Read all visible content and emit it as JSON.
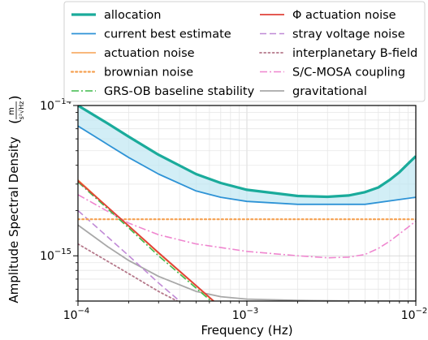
{
  "chart_data": {
    "type": "line",
    "title": "",
    "xlabel": "Frequency (Hz)",
    "ylabel": "Amplitude Spectral Density",
    "ylabel_unit": {
      "num": "m",
      "den": "s²√Hz"
    },
    "x_scale": "log",
    "y_scale": "log",
    "xlim": [
      0.0001,
      0.01
    ],
    "ylim": [
      5e-16,
      1e-14
    ],
    "grid": true,
    "legend_placement": "top (above plot, two columns)",
    "x_ticks": [
      {
        "value": 0.0001,
        "label": "10",
        "exp": "−4"
      },
      {
        "value": 0.001,
        "label": "10",
        "exp": "−3"
      },
      {
        "value": 0.01,
        "label": "10",
        "exp": "−2"
      }
    ],
    "y_ticks": [
      {
        "value": 1e-15,
        "label": "10",
        "exp": "−15"
      },
      {
        "value": 1e-14,
        "label": "10",
        "exp": "−14"
      }
    ],
    "shaded_region": {
      "between": [
        "allocation",
        "current best estimate"
      ],
      "color": "#bfe7f2"
    },
    "series": [
      {
        "name": "allocation",
        "color": "#1aab9b",
        "style": "solid",
        "width": 3.2,
        "points": [
          [
            0.0001,
            1e-14
          ],
          [
            0.00015,
            7.6e-15
          ],
          [
            0.0002,
            6.2e-15
          ],
          [
            0.0003,
            4.7e-15
          ],
          [
            0.0005,
            3.5e-15
          ],
          [
            0.0007,
            3.05e-15
          ],
          [
            0.001,
            2.75e-15
          ],
          [
            0.002,
            2.5e-15
          ],
          [
            0.003,
            2.47e-15
          ],
          [
            0.004,
            2.52e-15
          ],
          [
            0.005,
            2.65e-15
          ],
          [
            0.006,
            2.85e-15
          ],
          [
            0.007,
            3.2e-15
          ],
          [
            0.008,
            3.6e-15
          ],
          [
            0.009,
            4.1e-15
          ],
          [
            0.01,
            4.6e-15
          ]
        ]
      },
      {
        "name": "current best estimate",
        "color": "#2e93d6",
        "style": "solid",
        "width": 1.8,
        "points": [
          [
            0.0001,
            7.3e-15
          ],
          [
            0.00015,
            5.5e-15
          ],
          [
            0.0002,
            4.5e-15
          ],
          [
            0.0003,
            3.5e-15
          ],
          [
            0.0005,
            2.7e-15
          ],
          [
            0.0007,
            2.45e-15
          ],
          [
            0.001,
            2.3e-15
          ],
          [
            0.002,
            2.2e-15
          ],
          [
            0.005,
            2.2e-15
          ],
          [
            0.01,
            2.45e-15
          ]
        ]
      },
      {
        "name": "actuation noise",
        "color": "#f5a050",
        "style": "solid",
        "width": 1.6,
        "points": [
          [
            0.0001,
            3.2e-15
          ],
          [
            0.0002,
            1.57e-15
          ],
          [
            0.0003,
            1.04e-15
          ],
          [
            0.0005,
            6.3e-16
          ],
          [
            0.0007,
            4.5e-16
          ]
        ]
      },
      {
        "name": "brownian noise",
        "color": "#f5a050",
        "style": "dotted",
        "width": 2.2,
        "points": [
          [
            0.0001,
            1.75e-15
          ],
          [
            0.01,
            1.75e-15
          ]
        ]
      },
      {
        "name": "GRS-OB baseline stability",
        "color": "#3fba4a",
        "style": "dashdot",
        "width": 1.6,
        "points": [
          [
            0.0001,
            3.1e-15
          ],
          [
            0.0002,
            1.53e-15
          ],
          [
            0.0003,
            1e-15
          ],
          [
            0.0005,
            6.1e-16
          ],
          [
            0.0007,
            4.4e-16
          ]
        ]
      },
      {
        "name": "Φ actuation noise",
        "color": "#e0423a",
        "style": "solid",
        "width": 1.8,
        "points": [
          [
            0.0001,
            3.15e-15
          ],
          [
            0.0002,
            1.58e-15
          ],
          [
            0.0003,
            1.05e-15
          ],
          [
            0.0005,
            6.35e-16
          ],
          [
            0.0007,
            4.55e-16
          ]
        ]
      },
      {
        "name": "stray voltage noise",
        "color": "#c089d6",
        "style": "dashed",
        "width": 1.6,
        "points": [
          [
            0.0001,
            2e-15
          ],
          [
            0.0002,
            1e-15
          ],
          [
            0.0003,
            6.6e-16
          ],
          [
            0.0004,
            5e-16
          ],
          [
            0.0005,
            4e-16
          ]
        ]
      },
      {
        "name": "interplanetary B-field",
        "color": "#b5788a",
        "style": "dotted",
        "width": 1.8,
        "points": [
          [
            0.0001,
            1.2e-15
          ],
          [
            0.0002,
            7.6e-16
          ],
          [
            0.0003,
            5.8e-16
          ],
          [
            0.0004,
            4.9e-16
          ]
        ]
      },
      {
        "name": "S/C-MOSA coupling",
        "color": "#ef86cf",
        "style": "dashdot",
        "width": 1.6,
        "points": [
          [
            0.0001,
            2.55e-15
          ],
          [
            0.0002,
            1.65e-15
          ],
          [
            0.0003,
            1.38e-15
          ],
          [
            0.0005,
            1.2e-15
          ],
          [
            0.001,
            1.07e-15
          ],
          [
            0.002,
            1e-15
          ],
          [
            0.003,
            9.7e-16
          ],
          [
            0.004,
            9.8e-16
          ],
          [
            0.005,
            1.02e-15
          ],
          [
            0.006,
            1.12e-15
          ],
          [
            0.007,
            1.25e-15
          ],
          [
            0.008,
            1.4e-15
          ],
          [
            0.009,
            1.55e-15
          ],
          [
            0.01,
            1.7e-15
          ]
        ]
      },
      {
        "name": "gravitational",
        "color": "#a8a8a8",
        "style": "solid",
        "width": 1.8,
        "points": [
          [
            0.0001,
            1.6e-15
          ],
          [
            0.00015,
            1.15e-15
          ],
          [
            0.0002,
            9.3e-16
          ],
          [
            0.0003,
            7.3e-16
          ],
          [
            0.0005,
            5.8e-16
          ],
          [
            0.0007,
            5.35e-16
          ],
          [
            0.001,
            5.15e-16
          ],
          [
            0.002,
            5.05e-16
          ],
          [
            0.005,
            5e-16
          ],
          [
            0.01,
            5e-16
          ]
        ]
      }
    ]
  }
}
